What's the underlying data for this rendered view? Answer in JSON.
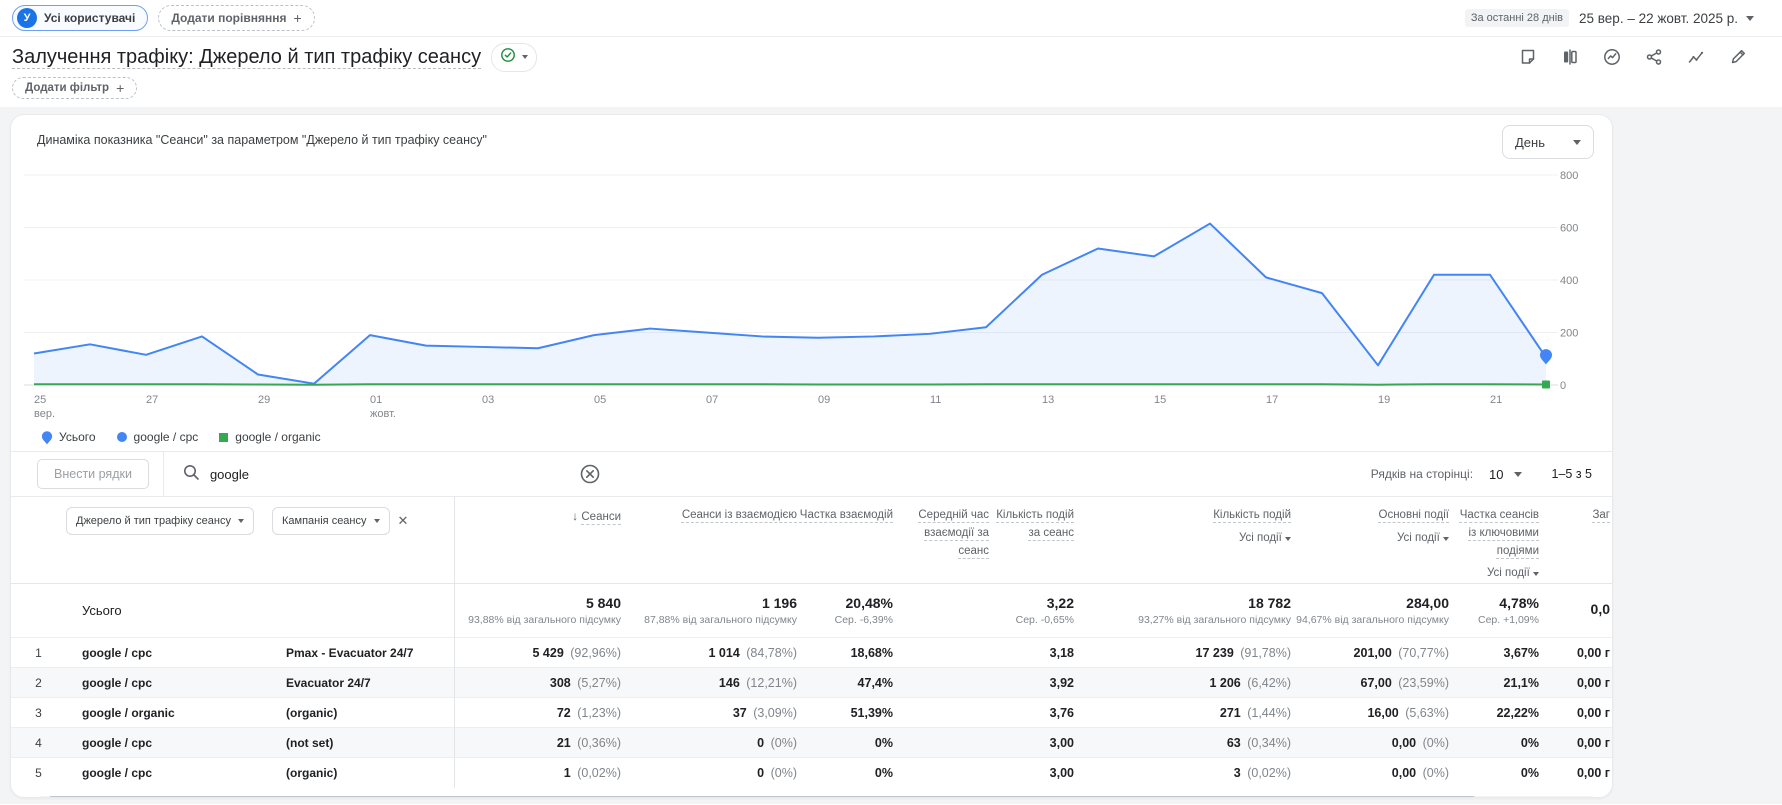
{
  "header": {
    "audience_chip": "Усі користувачі",
    "audience_avatar": "У",
    "add_comparison_label": "Додати порівняння",
    "date_preset": "За останні 28 днів",
    "date_range": "25 вер. – 22 жовт. 2025 р.",
    "title": "Залучення трафіку: Джерело й тип трафіку сеансу",
    "add_filter_label": "Додати фільтр"
  },
  "chart": {
    "heading": "Динаміка показника \"Сеанси\" за параметром \"Джерело й тип трафіку сеансу\"",
    "granularity_select": "День"
  },
  "chart_data": {
    "type": "line",
    "title": "Динаміка показника \"Сеанси\" за параметром \"Джерело й тип трафіку сеансу\"",
    "x": [
      "25 вер.",
      "26 вер.",
      "27 вер.",
      "28 вер.",
      "29 вер.",
      "30 вер.",
      "01 жовт.",
      "02 жовт.",
      "03 жовт.",
      "04 жовт.",
      "05 жовт.",
      "06 жовт.",
      "07 жовт.",
      "08 жовт.",
      "09 жовт.",
      "10 жовт.",
      "11 жовт.",
      "12 жовт.",
      "13 жовт.",
      "14 жовт.",
      "15 жовт.",
      "16 жовт.",
      "17 жовт.",
      "18 жовт.",
      "19 жовт.",
      "20 жовт.",
      "21 жовт.",
      "22 жовт."
    ],
    "ticks": [
      {
        "i": 0,
        "label": "25",
        "sub": "вер."
      },
      {
        "i": 2,
        "label": "27"
      },
      {
        "i": 4,
        "label": "29"
      },
      {
        "i": 6,
        "label": "01",
        "sub": "жовт."
      },
      {
        "i": 8,
        "label": "03"
      },
      {
        "i": 10,
        "label": "05"
      },
      {
        "i": 12,
        "label": "07"
      },
      {
        "i": 14,
        "label": "09"
      },
      {
        "i": 16,
        "label": "11"
      },
      {
        "i": 18,
        "label": "13"
      },
      {
        "i": 20,
        "label": "15"
      },
      {
        "i": 22,
        "label": "17"
      },
      {
        "i": 24,
        "label": "19"
      },
      {
        "i": 26,
        "label": "21"
      }
    ],
    "series": [
      {
        "name": "Усього",
        "values": [
          120,
          155,
          115,
          185,
          40,
          5,
          190,
          150,
          145,
          140,
          190,
          215,
          200,
          185,
          180,
          185,
          195,
          220,
          420,
          520,
          490,
          615,
          410,
          350,
          75,
          420,
          420,
          105
        ]
      },
      {
        "name": "google / cpc",
        "values": [
          116,
          151,
          111,
          181,
          37,
          3,
          186,
          146,
          141,
          136,
          186,
          211,
          196,
          181,
          176,
          181,
          191,
          216,
          416,
          516,
          486,
          611,
          406,
          346,
          73,
          416,
          416,
          102
        ]
      },
      {
        "name": "google / organic",
        "values": [
          3,
          3,
          3,
          3,
          2,
          1,
          3,
          3,
          3,
          3,
          3,
          3,
          3,
          3,
          2,
          2,
          2,
          3,
          3,
          3,
          3,
          3,
          3,
          3,
          1,
          3,
          3,
          2
        ]
      }
    ],
    "ylim": [
      0,
      800
    ],
    "yticks": [
      0,
      200,
      400,
      600,
      800
    ],
    "grid": true,
    "legend_position": "bottom-left",
    "colors": {
      "total": "#4285f4",
      "cpc": "#4285f4",
      "organic": "#34a853"
    },
    "legend": [
      {
        "name": "Усього",
        "marker": "pin",
        "color": "#4285f4"
      },
      {
        "name": "google / cpc",
        "marker": "circle",
        "color": "#4285f4"
      },
      {
        "name": "google / organic",
        "marker": "square",
        "color": "#34a853"
      }
    ]
  },
  "table": {
    "toolbar": {
      "import_rows_label": "Внести рядки",
      "search_value": "google",
      "rows_per_page_label": "Рядків на сторінці:",
      "rows_per_page": "10",
      "pagination": "1–5 з 5"
    },
    "dimension_pickers": {
      "primary": "Джерело й тип трафіку сеансу",
      "secondary": "Кампанія сеансу"
    },
    "columns": [
      {
        "label": "Сеанси",
        "sorted": true
      },
      {
        "label": "Сеанси із взаємодією"
      },
      {
        "label": "Частка взаємодій"
      },
      {
        "label": "Середній час взаємодії за сеанс"
      },
      {
        "label": "Кількість подій за сеанс"
      },
      {
        "label": "Кількість подій",
        "sub": "Усі події"
      },
      {
        "label": "Основні події",
        "sub": "Усі події"
      },
      {
        "label": "Частка сеансів із ключовими подіями",
        "sub": "Усі події"
      },
      {
        "label": "Заг",
        "clipped": true
      }
    ],
    "totals": {
      "label": "Усього",
      "cells": [
        {
          "value": "5 840",
          "sub": "93,88% від загального підсумку"
        },
        {
          "value": "1 196",
          "sub": "87,88% від загального підсумку"
        },
        {
          "value": "20,48%",
          "sub": "Сер. -6,39%"
        },
        {
          "value": "",
          "sub": ""
        },
        {
          "value": "3,22",
          "sub": "Сер. -0,65%"
        },
        {
          "value": "18 782",
          "sub": "93,27% від загального підсумку"
        },
        {
          "value": "284,00",
          "sub": "94,67% від загального підсумку"
        },
        {
          "value": "4,78%",
          "sub": "Сер. +1,09%"
        },
        {
          "value": "0,0",
          "sub": ""
        }
      ]
    },
    "rows": [
      {
        "index": 1,
        "dim1": "google / cpc",
        "dim2": "Pmax - Evacuator 24/7",
        "cells": [
          "5 429 (92,96%)",
          "1 014 (84,78%)",
          "18,68%",
          "",
          "3,18",
          "17 239 (91,78%)",
          "201,00 (70,77%)",
          "3,67%",
          "0,00 г"
        ]
      },
      {
        "index": 2,
        "dim1": "google / cpc",
        "dim2": "Evacuator 24/7",
        "cells": [
          "308 (5,27%)",
          "146 (12,21%)",
          "47,4%",
          "",
          "3,92",
          "1 206 (6,42%)",
          "67,00 (23,59%)",
          "21,1%",
          "0,00 г"
        ]
      },
      {
        "index": 3,
        "dim1": "google / organic",
        "dim2": "(organic)",
        "cells": [
          "72 (1,23%)",
          "37 (3,09%)",
          "51,39%",
          "",
          "3,76",
          "271 (1,44%)",
          "16,00 (5,63%)",
          "22,22%",
          "0,00 г"
        ]
      },
      {
        "index": 4,
        "dim1": "google / cpc",
        "dim2": "(not set)",
        "cells": [
          "21 (0,36%)",
          "0 (0%)",
          "0%",
          "",
          "3,00",
          "63 (0,34%)",
          "0,00 (0%)",
          "0%",
          "0,00 г"
        ]
      },
      {
        "index": 5,
        "dim1": "google / cpc",
        "dim2": "(organic)",
        "cells": [
          "1 (0,02%)",
          "0 (0%)",
          "0%",
          "",
          "3,00",
          "3 (0,02%)",
          "0,00 (0%)",
          "0%",
          "0,00 г"
        ]
      }
    ]
  }
}
